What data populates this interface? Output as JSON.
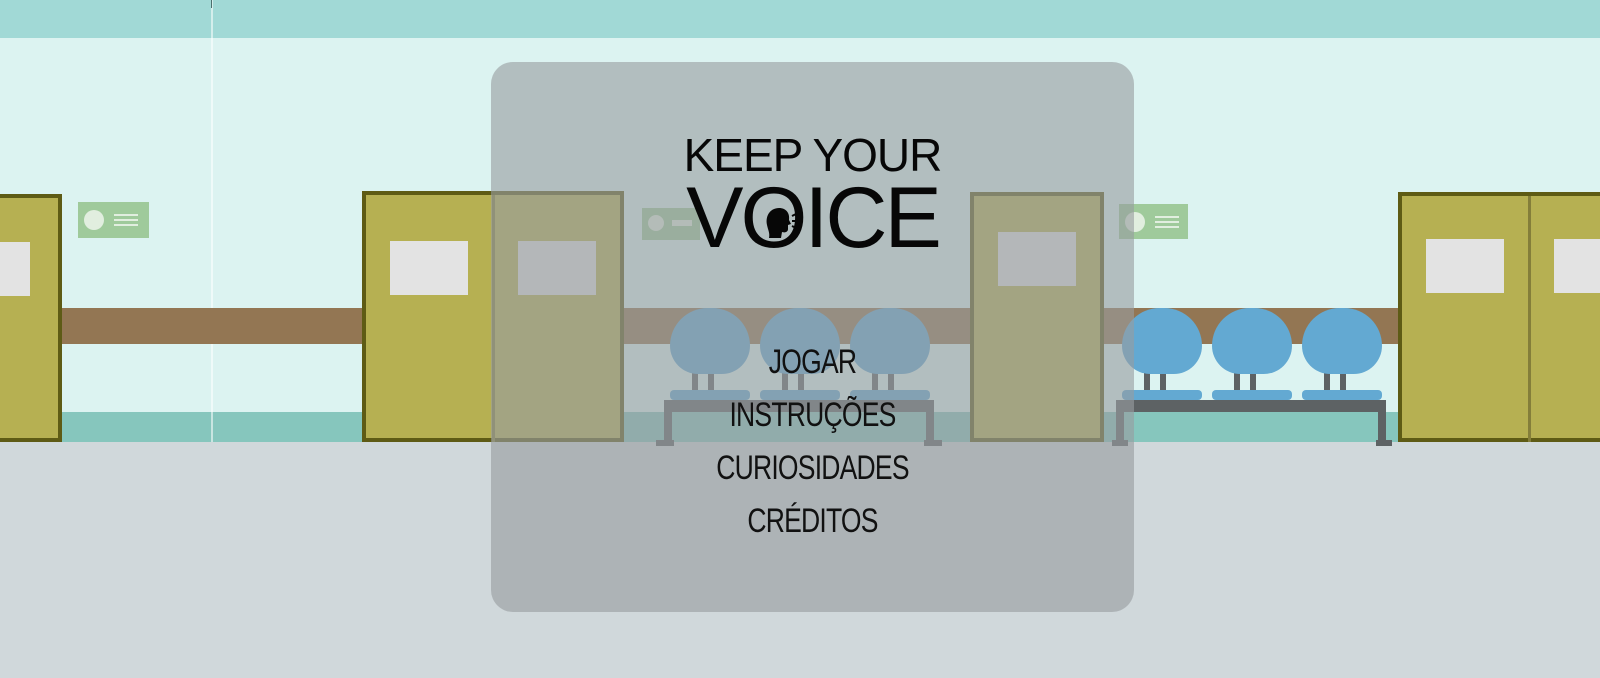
{
  "game": {
    "title_line1": "KEEP YOUR",
    "title_line2_pre": "V",
    "title_line2_post": "ICE",
    "logo_icon": "speaking-head-icon"
  },
  "menu": {
    "items": [
      {
        "label": "JOGAR"
      },
      {
        "label": "INSTRUÇÕES"
      },
      {
        "label": "CURIOSIDADES"
      },
      {
        "label": "CRÉDITOS"
      }
    ]
  },
  "colors": {
    "wall": "#dcf3f1",
    "top_stripe": "#a1d9d6",
    "floor": "#d0d8db",
    "door": "#b6b052",
    "chair": "#63a9d2",
    "panel": "rgba(152,157,160,0.62)"
  }
}
